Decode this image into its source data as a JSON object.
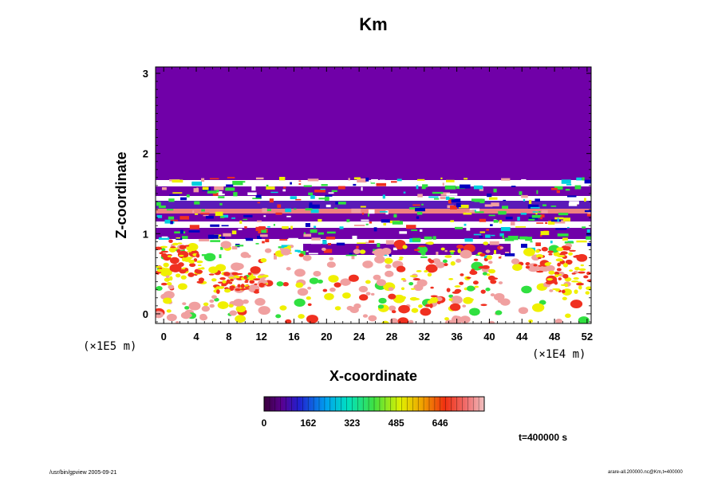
{
  "chart_data": {
    "type": "heatmap",
    "title": "Km",
    "xlabel": "X-coordinate",
    "ylabel": "Z-coordinate",
    "x_scale_label": "(×1E4 m)",
    "y_scale_label": "(×1E5 m)",
    "xlim": [
      -1,
      52.5
    ],
    "ylim": [
      -0.12,
      3.08
    ],
    "x_ticks": [
      0,
      4,
      8,
      12,
      16,
      20,
      24,
      28,
      32,
      36,
      40,
      44,
      48,
      52
    ],
    "x_tick_labels": [
      "0",
      "4",
      "8",
      "12",
      "16",
      "20",
      "24",
      "28",
      "32",
      "36",
      "40",
      "44",
      "48",
      "52"
    ],
    "y_ticks": [
      0,
      1,
      2,
      3
    ],
    "y_tick_labels": [
      "0",
      "1",
      "2",
      "3"
    ],
    "colorbar": {
      "min": 0,
      "max": 808,
      "ticks": [
        0,
        162,
        323,
        485,
        646
      ],
      "tick_labels": [
        "0",
        "162",
        "323",
        "485",
        "646"
      ]
    },
    "layers": [
      {
        "z_min": 1.72,
        "z_max": 3.08,
        "value": 0,
        "note": "uniform purple region"
      },
      {
        "z_min": 0.95,
        "z_max": 1.72,
        "value": 300,
        "note": "banded mixed values"
      },
      {
        "z_min": -0.12,
        "z_max": 0.95,
        "value": 700,
        "note": "mostly white with red patches"
      }
    ],
    "time_label": "t=400000 s",
    "colors": {
      "purple": "#7000a8",
      "blue": "#0000c0",
      "cyan": "#00d0e0",
      "green": "#30e040",
      "yellow": "#f0f000",
      "red": "#f03020",
      "pink": "#f0a0a0",
      "white": "#ffffff"
    }
  },
  "footer": {
    "left": "/usr/bin/gpview 2005-09-21",
    "right": "arare-all.200000.nc@Km,t=400000"
  }
}
